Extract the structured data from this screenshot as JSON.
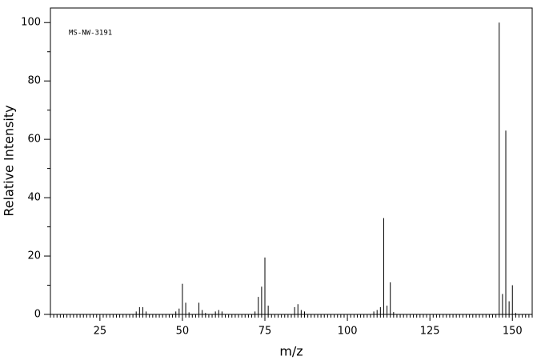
{
  "chart_data": {
    "type": "stem",
    "annotation": "MS-NW-3191",
    "xlabel": "m/z",
    "ylabel": "Relative Intensity",
    "x": [
      36,
      37,
      38,
      39,
      48,
      49,
      50,
      51,
      52,
      55,
      56,
      57,
      60,
      61,
      62,
      72,
      73,
      74,
      75,
      76,
      84,
      85,
      86,
      87,
      108,
      109,
      110,
      111,
      112,
      113,
      114,
      146,
      147,
      148,
      149,
      150,
      151
    ],
    "values": [
      1,
      2.5,
      2.5,
      1,
      1,
      2,
      10.5,
      4,
      0.7,
      4,
      1.5,
      0.5,
      1,
      1.5,
      1,
      1,
      6,
      9.5,
      19.5,
      3,
      2.5,
      3.5,
      1.5,
      1,
      1,
      1.5,
      2.5,
      33,
      3,
      11,
      0.8,
      100,
      7,
      63,
      4.5,
      10,
      0.5
    ],
    "color": "#000000",
    "xlim": [
      10,
      156
    ],
    "xticks": [
      25,
      50,
      75,
      100,
      125,
      150
    ],
    "xminorticks": [
      10,
      11,
      12,
      13,
      14,
      15,
      16,
      17,
      18,
      19,
      20,
      21,
      22,
      23,
      24,
      26,
      27,
      28,
      29,
      30,
      31,
      32,
      33,
      34,
      35,
      36,
      37,
      38,
      39,
      40,
      41,
      42,
      43,
      44,
      45,
      46,
      47,
      48,
      49,
      51,
      52,
      53,
      54,
      55,
      56,
      57,
      58,
      59,
      60,
      61,
      62,
      63,
      64,
      65,
      66,
      67,
      68,
      69,
      70,
      71,
      72,
      73,
      74,
      76,
      77,
      78,
      79,
      80,
      81,
      82,
      83,
      84,
      85,
      86,
      87,
      88,
      89,
      90,
      91,
      92,
      93,
      94,
      95,
      96,
      97,
      98,
      99,
      101,
      102,
      103,
      104,
      105,
      106,
      107,
      108,
      109,
      110,
      111,
      112,
      113,
      114,
      115,
      116,
      117,
      118,
      119,
      120,
      121,
      122,
      123,
      124,
      126,
      127,
      128,
      129,
      130,
      131,
      132,
      133,
      134,
      135,
      136,
      137,
      138,
      139,
      140,
      141,
      142,
      143,
      144,
      145,
      146,
      147,
      148,
      149,
      151,
      152,
      153,
      154,
      155,
      156
    ],
    "ylim": [
      0,
      105
    ],
    "yticks": [
      0,
      20,
      40,
      60,
      80,
      100
    ],
    "yminorticks": [
      10,
      30,
      50,
      70,
      90
    ],
    "grid": false
  }
}
